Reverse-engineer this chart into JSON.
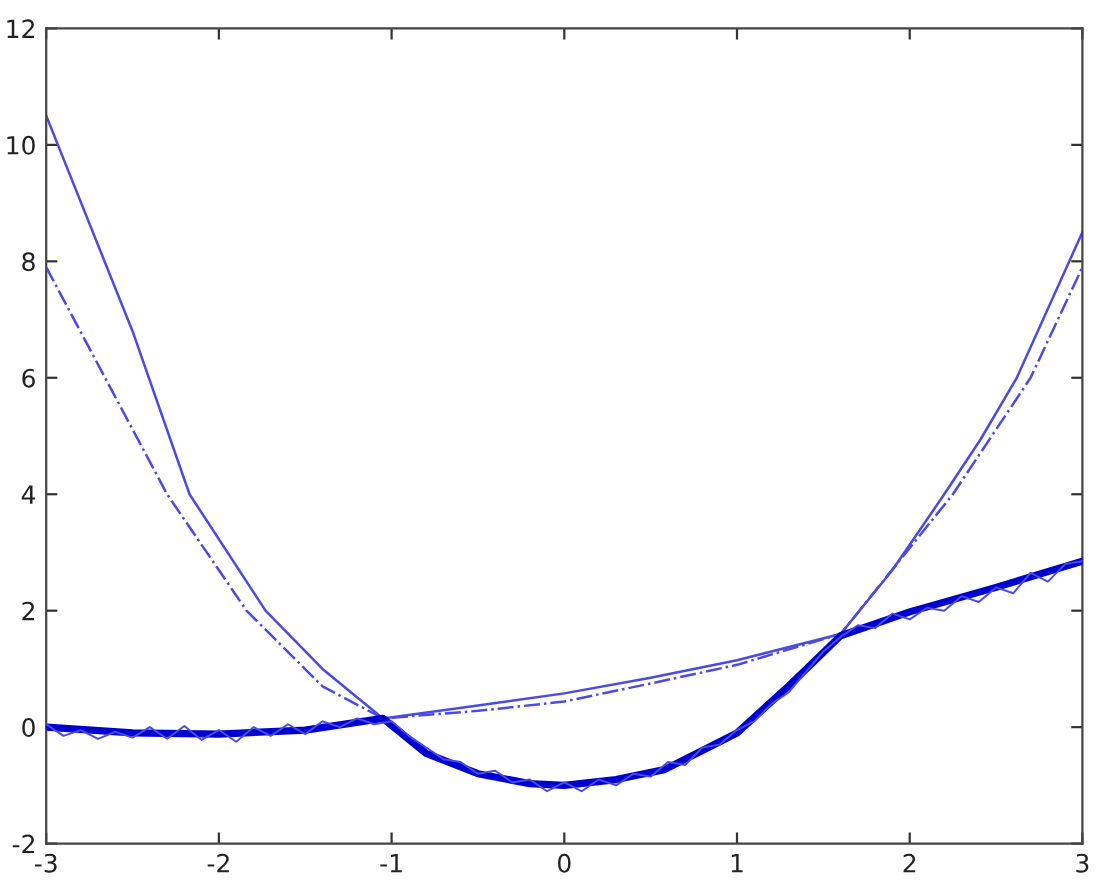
{
  "chart_data": {
    "type": "line",
    "xlim": [
      -3,
      3
    ],
    "ylim": [
      -2,
      12
    ],
    "xticks": [
      -3,
      -2,
      -1,
      0,
      1,
      2,
      3
    ],
    "yticks": [
      -2,
      0,
      2,
      4,
      6,
      8,
      10,
      12
    ],
    "grid": false,
    "legend": false,
    "marker": "none",
    "series": [
      {
        "color": "#4a4ae6",
        "line_style": "solid",
        "x": [
          -3,
          -2.5,
          -2.17,
          -1.73,
          -1.4,
          -1.05,
          -0.5,
          0,
          0.5,
          1,
          1.6,
          1.9,
          2.2,
          2.41,
          2.62,
          3
        ],
        "values": [
          10.5,
          6.8,
          4,
          2,
          1.0,
          0.15,
          0.37,
          0.58,
          0.85,
          1.15,
          1.6,
          2.7,
          4,
          4.94,
          6,
          8.5
        ]
      },
      {
        "color": "#4a4ae6",
        "line_style": "dashdot",
        "x": [
          -3,
          -2.3,
          -1.84,
          -1.4,
          -1.05,
          -0.5,
          0,
          0.5,
          1,
          1.6,
          2.25,
          2.7,
          3
        ],
        "values": [
          7.9,
          4,
          2,
          0.7,
          0.15,
          0.28,
          0.44,
          0.75,
          1.07,
          1.6,
          4,
          6,
          7.9
        ]
      },
      {
        "color": "#0000d0",
        "line_style": "solid",
        "x": [
          -3,
          -2.5,
          -2,
          -1.5,
          -1.05,
          -0.8,
          -0.5,
          -0.2,
          0,
          0.3,
          0.58,
          1,
          1.3,
          1.6,
          2,
          2.5,
          3
        ],
        "values": [
          0,
          -0.1,
          -0.12,
          -0.05,
          0.15,
          -0.45,
          -0.8,
          -0.97,
          -1.0,
          -0.9,
          -0.73,
          -0.1,
          0.71,
          1.57,
          1.98,
          2.4,
          2.85
        ]
      },
      {
        "color": "#4a4ae6",
        "line_style": "solid",
        "x": [
          -3.0,
          -2.9,
          -2.8,
          -2.7,
          -2.6,
          -2.5,
          -2.4,
          -2.3,
          -2.2,
          -2.1,
          -2.0,
          -1.9,
          -1.8,
          -1.7,
          -1.6,
          -1.5,
          -1.4,
          -1.3,
          -1.2,
          -1.1,
          -1.0,
          -0.9,
          -0.8,
          -0.7,
          -0.6,
          -0.5,
          -0.4,
          -0.3,
          -0.2,
          -0.1,
          0.0,
          0.1,
          0.2,
          0.3,
          0.4,
          0.5,
          0.6,
          0.7,
          0.8,
          0.9,
          1.0,
          1.1,
          1.2,
          1.3,
          1.4,
          1.5,
          1.6,
          1.7,
          1.8,
          1.9,
          2.0,
          2.1,
          2.2,
          2.3,
          2.4,
          2.5,
          2.6,
          2.7,
          2.8,
          2.9,
          3.0
        ],
        "values": [
          0.05,
          -0.15,
          -0.05,
          -0.2,
          -0.08,
          -0.18,
          0.0,
          -0.2,
          0.02,
          -0.22,
          -0.05,
          -0.25,
          0.0,
          -0.15,
          0.05,
          -0.12,
          0.1,
          0.0,
          0.15,
          0.05,
          0.1,
          -0.15,
          -0.35,
          -0.55,
          -0.6,
          -0.8,
          -0.75,
          -0.95,
          -0.9,
          -1.1,
          -0.95,
          -1.1,
          -0.9,
          -1.0,
          -0.8,
          -0.85,
          -0.6,
          -0.65,
          -0.35,
          -0.3,
          -0.05,
          0.1,
          0.4,
          0.6,
          0.95,
          1.3,
          1.55,
          1.75,
          1.7,
          1.95,
          1.85,
          2.05,
          2.0,
          2.25,
          2.15,
          2.4,
          2.3,
          2.65,
          2.5,
          2.8,
          2.85
        ]
      }
    ]
  }
}
